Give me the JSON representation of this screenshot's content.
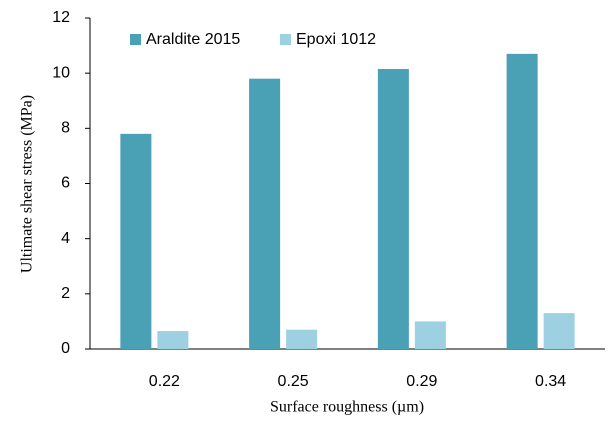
{
  "chart_data": {
    "type": "bar",
    "x_label": "Surface roughness (µm)",
    "y_label": "Ultimate shear stress (MPa)",
    "categories": [
      "0.22",
      "0.25",
      "0.29",
      "0.34"
    ],
    "series": [
      {
        "name": "Araldite 2015",
        "color": "#4aa0b5",
        "values": [
          7.8,
          9.8,
          10.15,
          10.7
        ]
      },
      {
        "name": "Epoxi 1012",
        "color": "#9dd0e0",
        "values": [
          0.65,
          0.7,
          1.0,
          1.3
        ]
      }
    ],
    "ylim": [
      0,
      12
    ],
    "yticks": [
      0,
      2,
      4,
      6,
      8,
      10,
      12
    ],
    "grid": false,
    "legend": "top-left"
  }
}
